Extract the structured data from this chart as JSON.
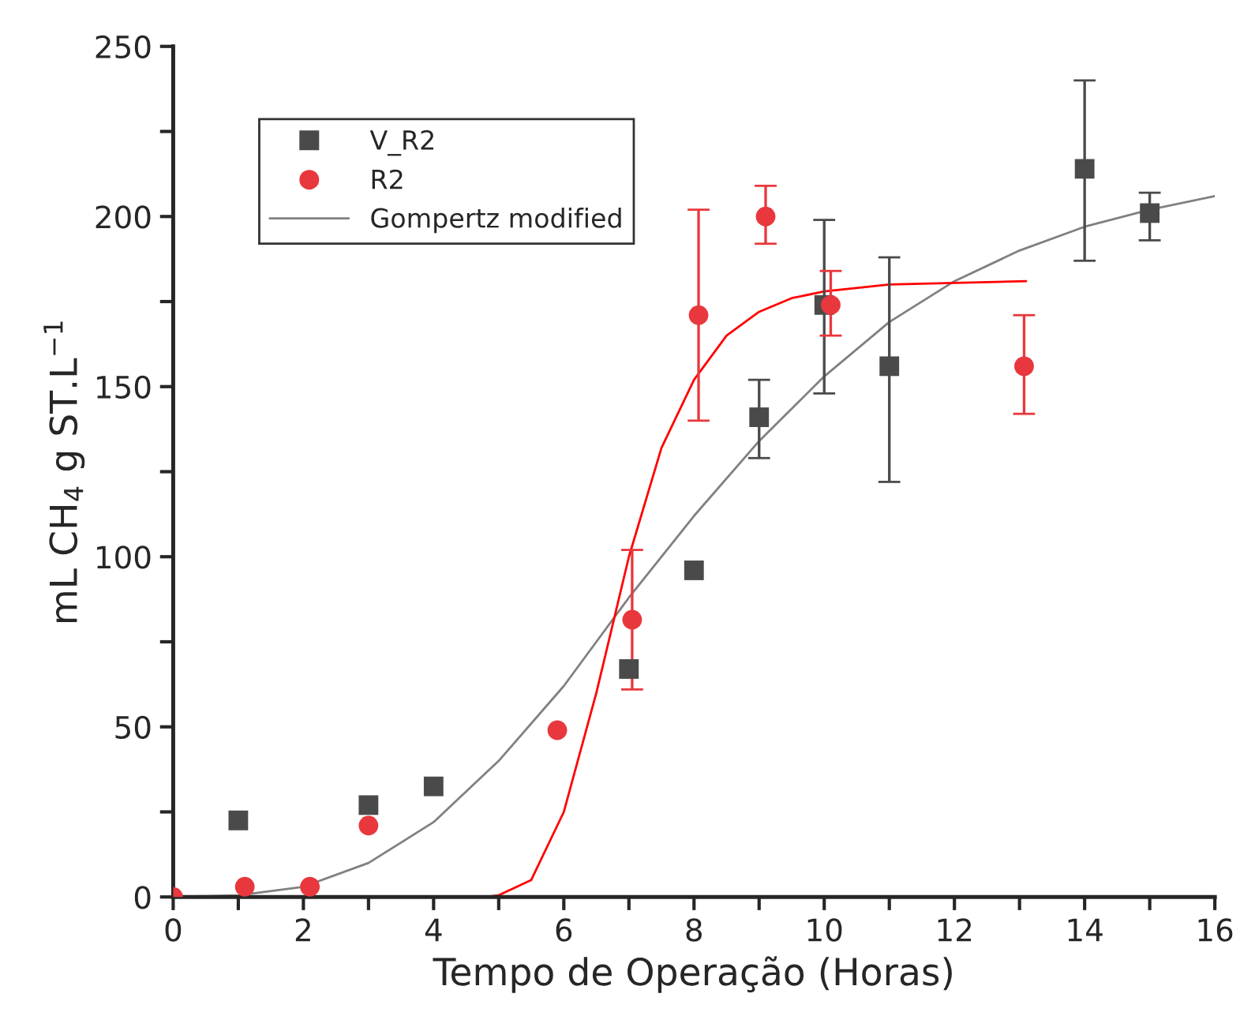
{
  "chart_data": {
    "type": "scatter",
    "xlabel": "Tempo de Operação (Horas)",
    "ylabel": "mL CH$_{4}$ g ST.L$^{−1}$",
    "xlim": [
      0,
      16
    ],
    "ylim": [
      0,
      250
    ],
    "xticks": [
      0,
      {
        "value": 1,
        "label": null
      },
      2,
      {
        "value": 3,
        "label": null
      },
      4,
      {
        "value": 5,
        "label": null
      },
      6,
      {
        "value": 7,
        "label": null
      },
      8,
      {
        "value": 9,
        "label": null
      },
      10,
      {
        "value": 11,
        "label": null
      },
      12,
      {
        "value": 13,
        "label": null
      },
      14,
      {
        "value": 15,
        "label": null
      },
      16
    ],
    "yticks": [
      0,
      {
        "value": 25,
        "label": null
      },
      50,
      {
        "value": 75,
        "label": null
      },
      100,
      {
        "value": 125,
        "label": null
      },
      150,
      {
        "value": 175,
        "label": null
      },
      200,
      {
        "value": 225,
        "label": null
      },
      250
    ],
    "grid": false,
    "legend": "top left",
    "series": [
      {
        "name": "V_R2",
        "marker": "square",
        "color": "#4a4a4a",
        "x": [
          1,
          3,
          4,
          7,
          8,
          9,
          10,
          11,
          14,
          15
        ],
        "values": [
          22.5,
          27,
          32.5,
          67,
          96,
          141,
          174,
          156,
          214,
          201
        ],
        "errors": [
          null,
          null,
          null,
          null,
          null,
          [
            129,
            152
          ],
          [
            148,
            199
          ],
          [
            122,
            188
          ],
          [
            187,
            240
          ],
          [
            193,
            207
          ]
        ]
      },
      {
        "name": "R2",
        "marker": "circle",
        "color": "#e8383d",
        "x": [
          0,
          1.1,
          2.1,
          3,
          5.9,
          7.05,
          8.07,
          9.1,
          10.1,
          13.07
        ],
        "values": [
          0,
          3,
          3,
          21,
          49,
          81.5,
          171,
          200,
          174,
          156
        ],
        "errors": [
          null,
          null,
          null,
          null,
          null,
          [
            61,
            102
          ],
          [
            140,
            202
          ],
          [
            192,
            209
          ],
          [
            165,
            184
          ],
          [
            142,
            171
          ]
        ]
      },
      {
        "name": "Gompertz modified",
        "type": "line",
        "marker": "none",
        "line_style": "solid",
        "color": "#808080",
        "x": [
          0,
          1,
          2,
          3,
          4,
          5,
          6,
          7,
          8,
          9,
          10,
          11,
          12,
          13,
          14,
          15,
          16
        ],
        "values": [
          0,
          0.5,
          3,
          10,
          22,
          40,
          62,
          88,
          112,
          134,
          153,
          169,
          181,
          190,
          197,
          202,
          206
        ]
      },
      {
        "type": "line",
        "marker": "none",
        "line_style": "solid",
        "color": "#ff0000",
        "x": [
          0,
          4.8,
          5,
          5.5,
          6,
          6.5,
          7,
          7.5,
          8,
          8.5,
          9,
          9.5,
          10,
          11,
          12,
          13.1
        ],
        "values": [
          0,
          0,
          0.5,
          5,
          25,
          60,
          100,
          132,
          152,
          165,
          172,
          176,
          178,
          180,
          180.5,
          181
        ]
      }
    ]
  }
}
